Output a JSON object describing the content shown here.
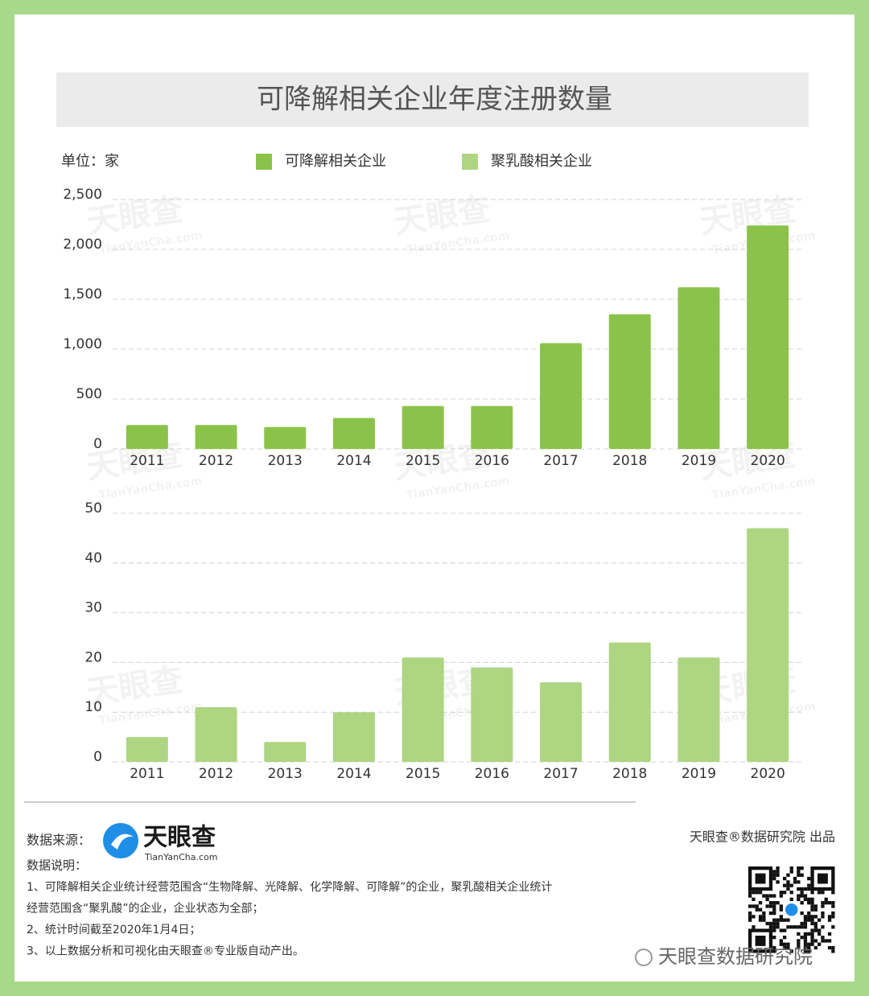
{
  "header": {
    "title": "可降解相关企业年度注册数量"
  },
  "chart_data": [
    {
      "type": "bar",
      "y_label": "单位：家",
      "categories": [
        "2011",
        "2012",
        "2013",
        "2014",
        "2015",
        "2016",
        "2017",
        "2018",
        "2019",
        "2020"
      ],
      "series": [
        {
          "name": "可降解相关企业",
          "color": "#8bc34a",
          "values": [
            240,
            240,
            220,
            310,
            430,
            430,
            1060,
            1350,
            1620,
            2240
          ]
        }
      ],
      "ylim": [
        0,
        2500
      ],
      "yticks": [
        0,
        500,
        {
          "value": 1000,
          "label": "1,000"
        },
        {
          "value": 1500,
          "label": "1,500"
        },
        {
          "value": 2000,
          "label": "2,000"
        },
        {
          "value": 2500,
          "label": "2,500"
        }
      ],
      "grid": true
    },
    {
      "type": "bar",
      "categories": [
        "2011",
        "2012",
        "2013",
        "2014",
        "2015",
        "2016",
        "2017",
        "2018",
        "2019",
        "2020"
      ],
      "series": [
        {
          "name": "聚乳酸相关企业",
          "color": "#aed581",
          "values": [
            5,
            11,
            4,
            10,
            21,
            19,
            16,
            24,
            21,
            47
          ]
        }
      ],
      "ylim": [
        0,
        50
      ],
      "yticks": [
        0,
        10,
        20,
        30,
        40,
        50
      ],
      "grid": true
    }
  ],
  "watermark": {
    "brand": "天眼查",
    "url": "TianYanCha.com"
  },
  "footer": {
    "source_label": "数据来源：",
    "logo": "天眼查",
    "logo_url": "TianYanCha.com",
    "notes_label": "数据说明：",
    "notes": [
      "1、可降解相关企业统计经营范围含“生物降解、光降解、化学降解、可降解”的企业，聚乳酸相关企业统计",
      "经营范围含“聚乳酸”的企业，企业状态为全部；",
      "2、统计时间截至2020年1月4日；",
      "3、以上数据分析和可视化由天眼查®专业版自动产出。"
    ],
    "producer": "天眼查®数据研究院 出品",
    "wechat": "天眼查数据研究院"
  }
}
